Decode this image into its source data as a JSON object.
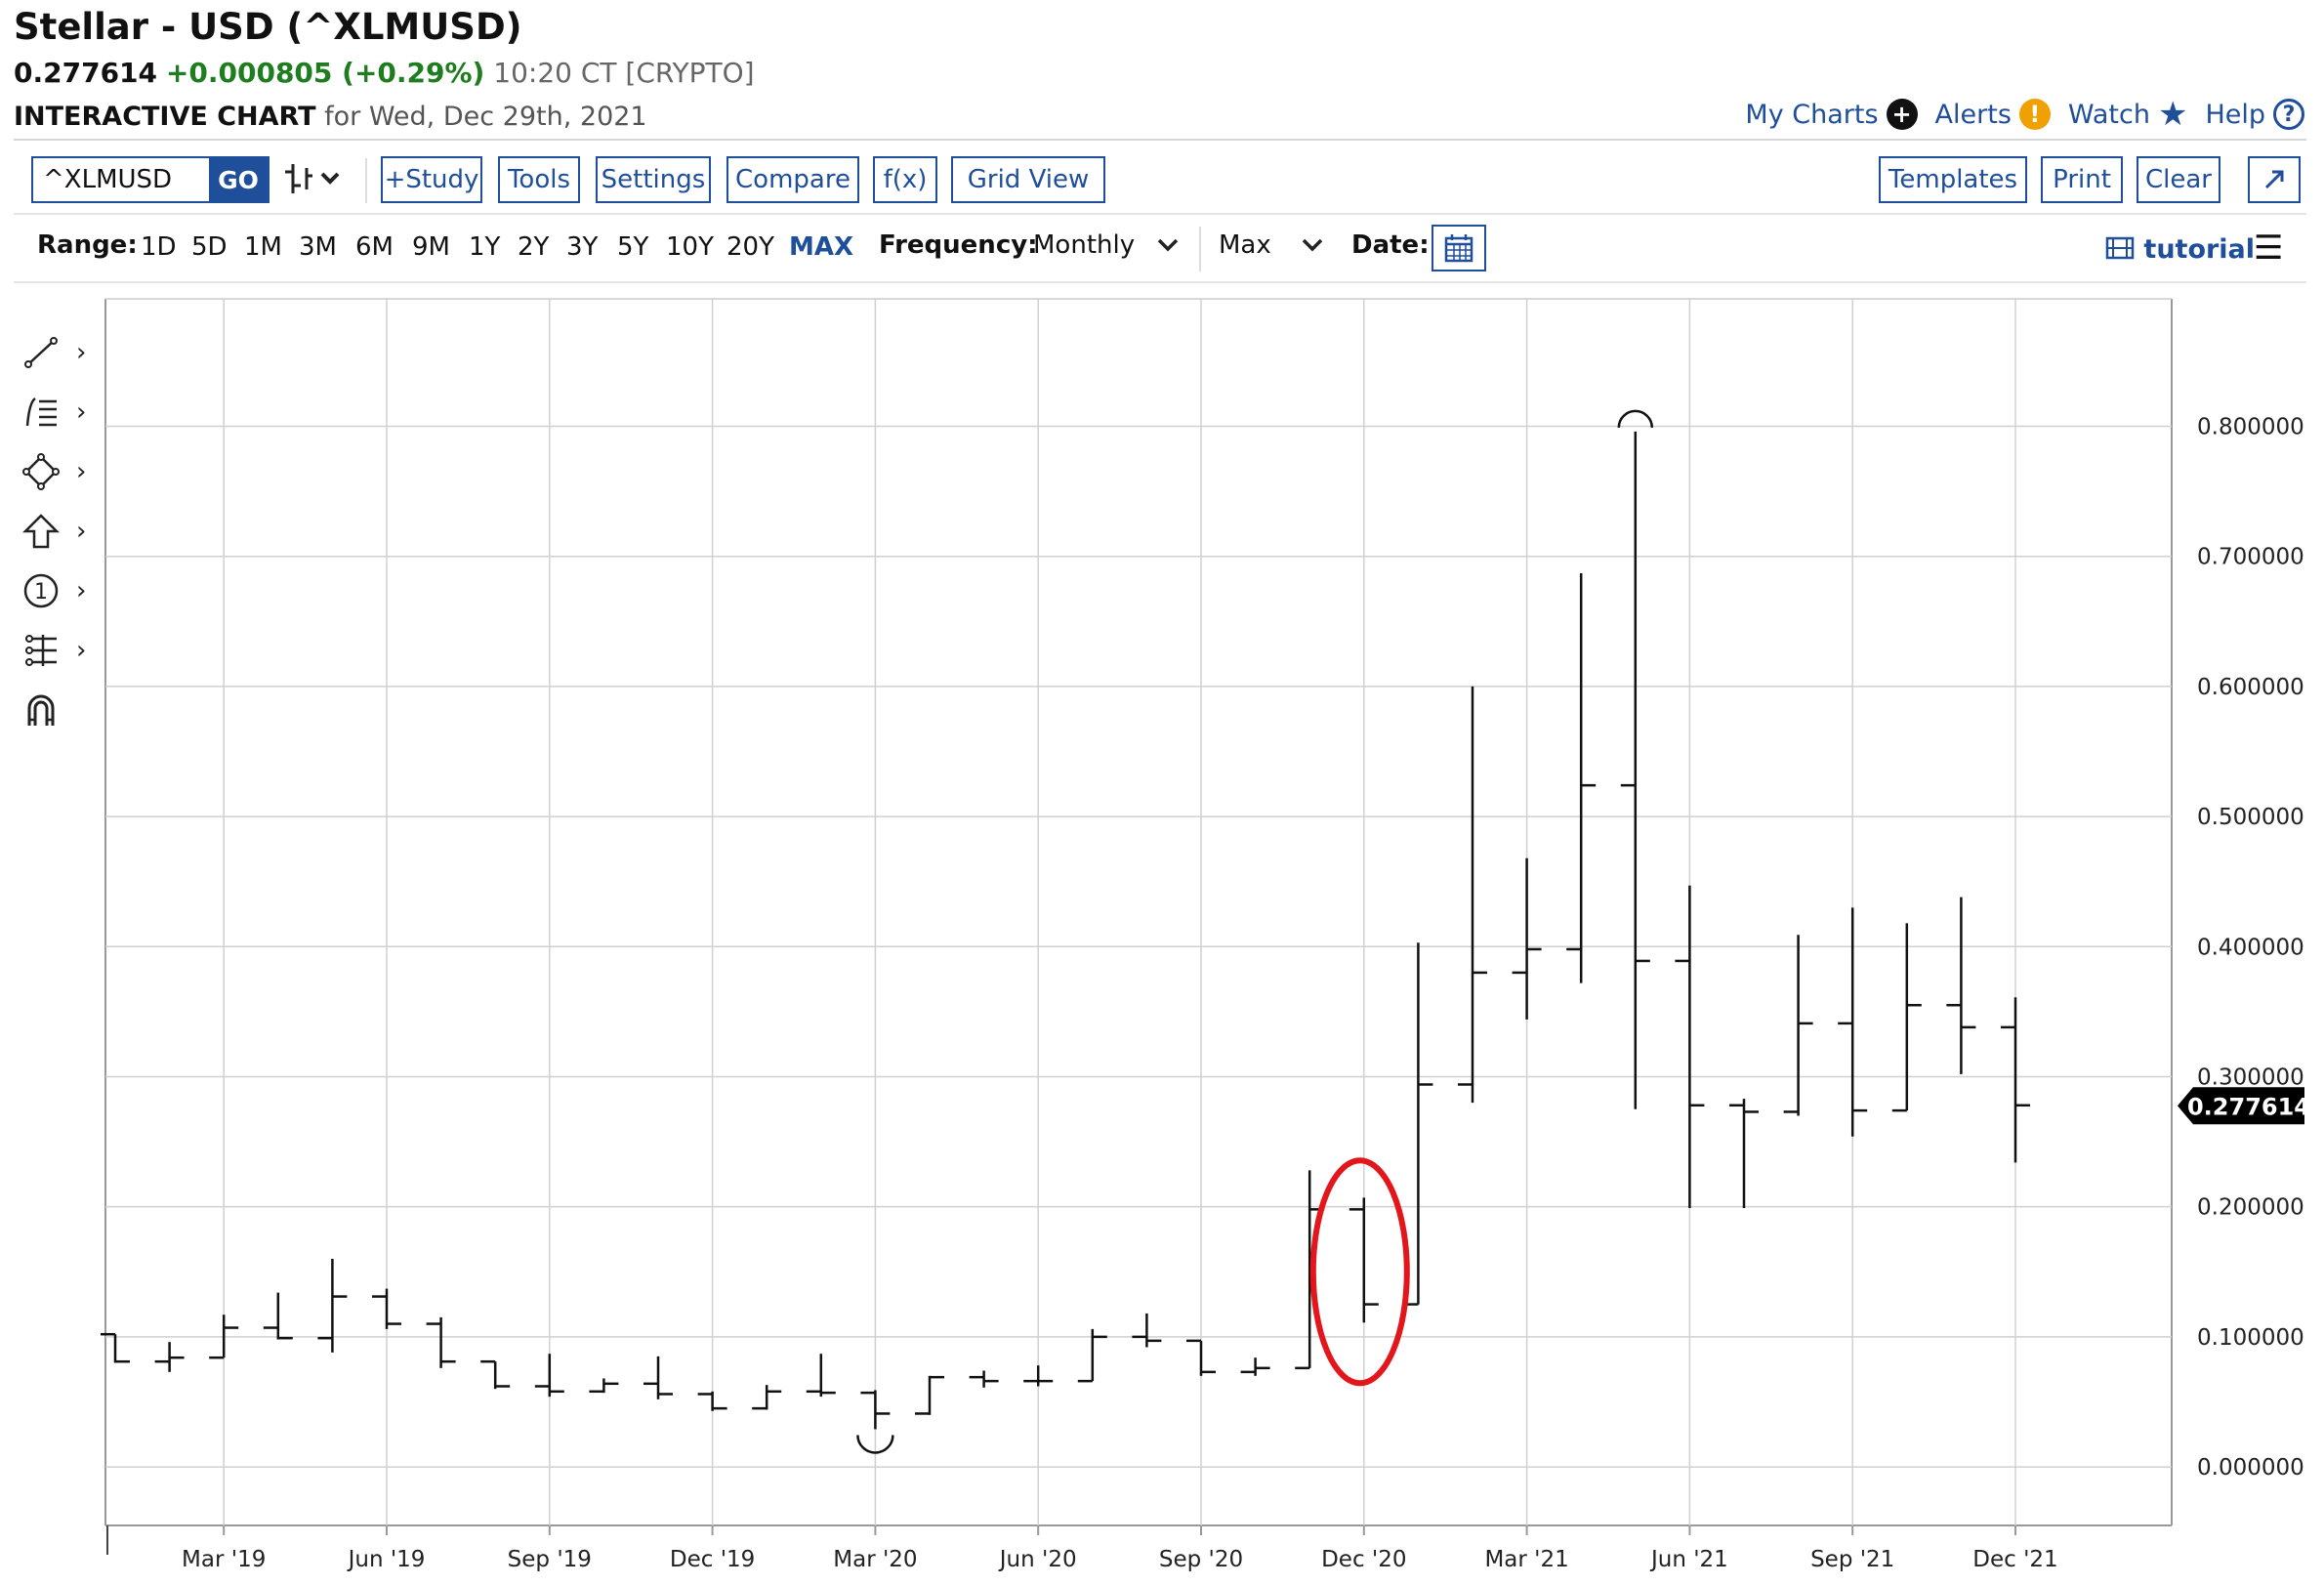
{
  "header": {
    "title": "Stellar - USD (^XLMUSD)",
    "last": "0.277614",
    "change": "+0.000805 (+0.29%)",
    "time": "10:20 CT [CRYPTO]",
    "chart_label": "INTERACTIVE CHART",
    "chart_date": "for Wed, Dec 29th, 2021"
  },
  "top_links": {
    "my_charts": "My Charts",
    "alerts": "Alerts",
    "watch": "Watch",
    "help": "Help"
  },
  "toolbar": {
    "symbol_value": "^XLMUSD",
    "go": "GO",
    "study": "+Study",
    "tools": "Tools",
    "settings": "Settings",
    "compare": "Compare",
    "fx": "f(x)",
    "grid_view": "Grid View",
    "templates": "Templates",
    "print": "Print",
    "clear": "Clear"
  },
  "rangebar": {
    "range_label": "Range:",
    "ranges": [
      "1D",
      "5D",
      "1M",
      "3M",
      "6M",
      "9M",
      "1Y",
      "2Y",
      "3Y",
      "5Y",
      "10Y",
      "20Y",
      "MAX"
    ],
    "active_range": "MAX",
    "frequency_label": "Frequency:",
    "frequency_value": "Monthly",
    "period_value": "Max",
    "date_label": "Date:",
    "tutorial": "tutorial"
  },
  "chart_data": {
    "type": "ohlc",
    "frequency": "monthly",
    "x_tick_labels": [
      "Mar '19",
      "Jun '19",
      "Sep '19",
      "Dec '19",
      "Mar '20",
      "Jun '20",
      "Sep '20",
      "Dec '20",
      "Mar '21",
      "Jun '21",
      "Sep '21",
      "Dec '21"
    ],
    "y_tick_labels": [
      "0.800000",
      "0.700000",
      "0.600000",
      "0.500000",
      "0.400000",
      "0.300000",
      "0.200000",
      "0.100000",
      "0.000000"
    ],
    "y_ticks": [
      0.8,
      0.7,
      0.6,
      0.5,
      0.4,
      0.3,
      0.2,
      0.1,
      0.0
    ],
    "ylim": [
      -0.045,
      0.898
    ],
    "last_price_label": "0.277614",
    "last_price": 0.277614,
    "bars": [
      {
        "month": "2019-01",
        "open": 0.102,
        "high": 0.102,
        "low": 0.08,
        "close": 0.081
      },
      {
        "month": "2019-02",
        "open": 0.081,
        "high": 0.096,
        "low": 0.073,
        "close": 0.084
      },
      {
        "month": "2019-03",
        "open": 0.084,
        "high": 0.117,
        "low": 0.084,
        "close": 0.107
      },
      {
        "month": "2019-04",
        "open": 0.107,
        "high": 0.134,
        "low": 0.098,
        "close": 0.099
      },
      {
        "month": "2019-05",
        "open": 0.099,
        "high": 0.16,
        "low": 0.088,
        "close": 0.131
      },
      {
        "month": "2019-06",
        "open": 0.131,
        "high": 0.137,
        "low": 0.106,
        "close": 0.11
      },
      {
        "month": "2019-07",
        "open": 0.11,
        "high": 0.115,
        "low": 0.076,
        "close": 0.081
      },
      {
        "month": "2019-08",
        "open": 0.081,
        "high": 0.081,
        "low": 0.06,
        "close": 0.062
      },
      {
        "month": "2019-09",
        "open": 0.062,
        "high": 0.087,
        "low": 0.054,
        "close": 0.058
      },
      {
        "month": "2019-10",
        "open": 0.058,
        "high": 0.068,
        "low": 0.057,
        "close": 0.064
      },
      {
        "month": "2019-11",
        "open": 0.064,
        "high": 0.085,
        "low": 0.052,
        "close": 0.056
      },
      {
        "month": "2019-12",
        "open": 0.056,
        "high": 0.058,
        "low": 0.043,
        "close": 0.045
      },
      {
        "month": "2020-01",
        "open": 0.045,
        "high": 0.063,
        "low": 0.044,
        "close": 0.058
      },
      {
        "month": "2020-02",
        "open": 0.058,
        "high": 0.087,
        "low": 0.054,
        "close": 0.057
      },
      {
        "month": "2020-03",
        "open": 0.057,
        "high": 0.059,
        "low": 0.029,
        "close": 0.041
      },
      {
        "month": "2020-04",
        "open": 0.041,
        "high": 0.07,
        "low": 0.04,
        "close": 0.069
      },
      {
        "month": "2020-05",
        "open": 0.069,
        "high": 0.074,
        "low": 0.061,
        "close": 0.066
      },
      {
        "month": "2020-06",
        "open": 0.066,
        "high": 0.078,
        "low": 0.062,
        "close": 0.066
      },
      {
        "month": "2020-07",
        "open": 0.066,
        "high": 0.106,
        "low": 0.066,
        "close": 0.1
      },
      {
        "month": "2020-08",
        "open": 0.1,
        "high": 0.118,
        "low": 0.092,
        "close": 0.097
      },
      {
        "month": "2020-09",
        "open": 0.097,
        "high": 0.097,
        "low": 0.07,
        "close": 0.073
      },
      {
        "month": "2020-10",
        "open": 0.073,
        "high": 0.084,
        "low": 0.07,
        "close": 0.076
      },
      {
        "month": "2020-11",
        "open": 0.076,
        "high": 0.228,
        "low": 0.076,
        "close": 0.198
      },
      {
        "month": "2020-12",
        "open": 0.198,
        "high": 0.207,
        "low": 0.111,
        "close": 0.125
      },
      {
        "month": "2021-01",
        "open": 0.125,
        "high": 0.403,
        "low": 0.125,
        "close": 0.294
      },
      {
        "month": "2021-02",
        "open": 0.294,
        "high": 0.6,
        "low": 0.28,
        "close": 0.38
      },
      {
        "month": "2021-03",
        "open": 0.38,
        "high": 0.468,
        "low": 0.344,
        "close": 0.398
      },
      {
        "month": "2021-04",
        "open": 0.398,
        "high": 0.687,
        "low": 0.372,
        "close": 0.524
      },
      {
        "month": "2021-05",
        "open": 0.524,
        "high": 0.796,
        "low": 0.275,
        "close": 0.389
      },
      {
        "month": "2021-06",
        "open": 0.389,
        "high": 0.447,
        "low": 0.199,
        "close": 0.278
      },
      {
        "month": "2021-07",
        "open": 0.278,
        "high": 0.283,
        "low": 0.199,
        "close": 0.273
      },
      {
        "month": "2021-08",
        "open": 0.273,
        "high": 0.409,
        "low": 0.27,
        "close": 0.341
      },
      {
        "month": "2021-09",
        "open": 0.341,
        "high": 0.43,
        "low": 0.254,
        "close": 0.274
      },
      {
        "month": "2021-10",
        "open": 0.274,
        "high": 0.418,
        "low": 0.274,
        "close": 0.355
      },
      {
        "month": "2021-11",
        "open": 0.355,
        "high": 0.438,
        "low": 0.302,
        "close": 0.338
      },
      {
        "month": "2021-12",
        "open": 0.338,
        "high": 0.361,
        "low": 0.234,
        "close": 0.278
      }
    ],
    "annotations": {
      "high_marker_month": "2021-05",
      "low_marker_month": "2020-03",
      "highlight_month": "2020-12",
      "highlight_color": "#e3161b"
    },
    "grid": true
  },
  "colors": {
    "accent": "#1f4e9a",
    "positive": "#1e7d1e",
    "bar": "#111111",
    "grid": "#d0d0d0"
  },
  "icons": {
    "draw_tools": [
      "trendline-icon",
      "fibonacci-icon",
      "shape-icon",
      "arrow-up-icon",
      "numbered-marker-icon",
      "measure-icon",
      "magnet-icon"
    ]
  }
}
